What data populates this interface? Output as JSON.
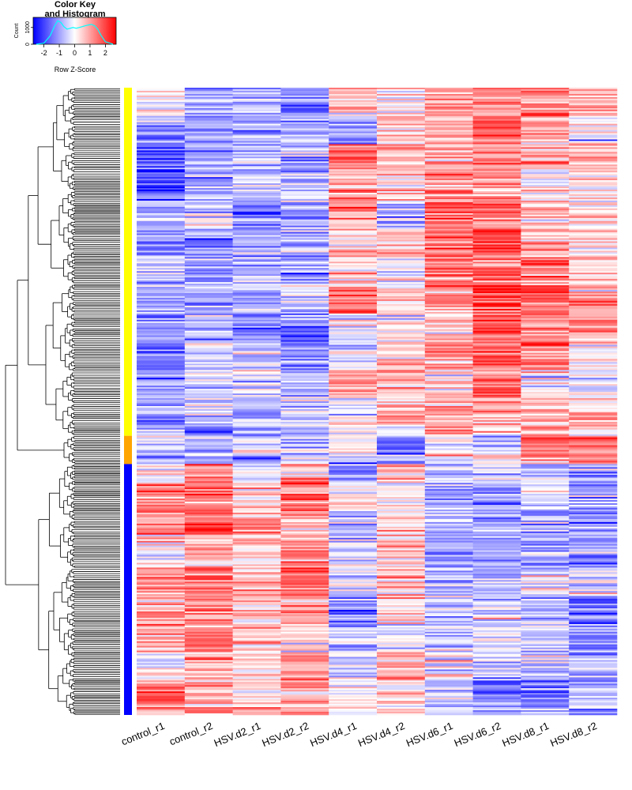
{
  "chart_data": {
    "type": "heatmap",
    "title": "",
    "color_key": {
      "title_line1": "Color Key",
      "title_line2": "and Histogram",
      "xlabel": "Row Z-Score",
      "ylabel": "Count",
      "x_ticks": [
        "-2",
        "-1",
        "0",
        "1",
        "2"
      ],
      "x_tick_values": [
        -2,
        -1,
        0,
        1,
        2
      ],
      "y_ticks": [
        "0",
        "1000"
      ],
      "y_tick_values": [
        0,
        1000
      ],
      "xlim": [
        -2.7,
        2.7
      ],
      "ylim": [
        0,
        1600
      ],
      "low_color": "#0000ff",
      "mid_color": "#ffffff",
      "high_color": "#ff0000",
      "density_color": "#00ffff",
      "density": {
        "x": [
          -2.5,
          -2.0,
          -1.6,
          -1.3,
          -1.1,
          -0.9,
          -0.7,
          -0.5,
          -0.3,
          -0.1,
          0.1,
          0.3,
          0.5,
          0.7,
          0.9,
          1.1,
          1.3,
          1.5,
          1.7,
          2.0,
          2.5
        ],
        "y": [
          0,
          60,
          500,
          1100,
          1400,
          1300,
          1050,
          900,
          950,
          1000,
          950,
          1000,
          1050,
          1100,
          1150,
          1180,
          1100,
          900,
          550,
          150,
          0
        ]
      }
    },
    "columns": [
      "control_r1",
      "control_r2",
      "HSV.d2_r1",
      "HSV.d2_r2",
      "HSV.d4_r1",
      "HSV.d4_r2",
      "HSV.d6_r1",
      "HSV.d6_r2",
      "HSV.d8_r1",
      "HSV.d8_r2"
    ],
    "row_clusters": [
      {
        "color": "#ffff00",
        "fraction": 0.555,
        "mean_z": [
          -0.9,
          -0.7,
          -0.8,
          -0.8,
          0.5,
          0.3,
          1.0,
          1.3,
          0.8,
          0.3
        ]
      },
      {
        "color": "#ffa500",
        "fraction": 0.045,
        "mean_z": [
          -0.3,
          -0.5,
          -0.5,
          -0.4,
          -0.2,
          -0.7,
          -0.3,
          0.1,
          1.0,
          1.4
        ]
      },
      {
        "color": "#0000ff",
        "fraction": 0.4,
        "mean_z": [
          0.7,
          1.0,
          0.5,
          0.9,
          -0.2,
          0.4,
          -0.6,
          -0.7,
          -0.8,
          -0.8
        ]
      }
    ],
    "row_dendrogram": true
  }
}
